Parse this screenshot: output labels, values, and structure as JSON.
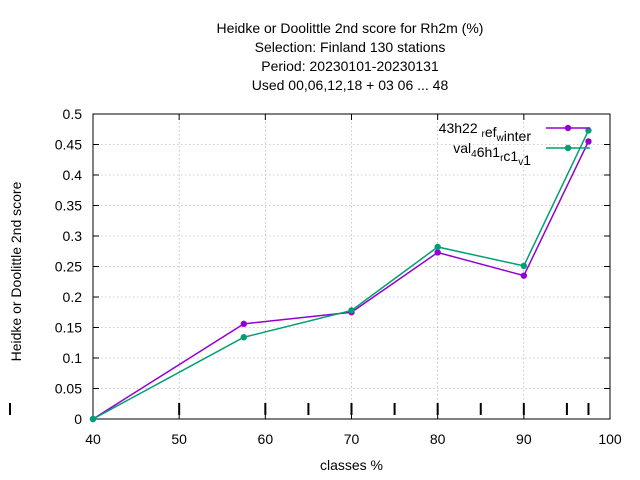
{
  "chart_data": {
    "type": "line",
    "title_lines": [
      "Heidke or Doolittle 2nd score  for Rh2m (%)",
      "Selection: Finland    130 stations",
      "Period: 20230101-20230131",
      "Used  00,06,12,18  + 03 06 ... 48"
    ],
    "xlabel": "classes %",
    "ylabel": "Heidke or Doolittle 2nd score",
    "xlim": [
      40,
      100
    ],
    "ylim": [
      0,
      0.5
    ],
    "xticks": [
      40,
      50,
      60,
      70,
      80,
      90,
      100
    ],
    "yticks": [
      0,
      0.05,
      0.1,
      0.15,
      0.2,
      0.25,
      0.3,
      0.35,
      0.4,
      0.45,
      0.5
    ],
    "ytick_labels": [
      "0",
      "0.05",
      "0.1",
      "0.15",
      "0.2",
      "0.25",
      "0.3",
      "0.35",
      "0.4",
      "0.45",
      "0.5"
    ],
    "xtick_labels": [
      "40",
      "50",
      "60",
      "70",
      "80",
      "90",
      "100"
    ],
    "class_marks_x": [
      40,
      50,
      60,
      65,
      70,
      75,
      80,
      85,
      90,
      95,
      97.5
    ],
    "grid": true,
    "legend_position": "top-right",
    "series": [
      {
        "name": "43h22 r ef w inter",
        "legend_parts": [
          [
            "43h22 ",
            ""
          ],
          [
            "r",
            "sub"
          ],
          [
            "ef",
            ""
          ],
          [
            "w",
            "sub"
          ],
          [
            "inter",
            ""
          ]
        ],
        "color": "#9400d3",
        "x": [
          40,
          57.5,
          70,
          80,
          90,
          97.5
        ],
        "y": [
          0.0,
          0.156,
          0.175,
          0.273,
          0.235,
          0.455
        ]
      },
      {
        "name": "val 4 6h1 r c1 v 1",
        "legend_parts": [
          [
            "val",
            ""
          ],
          [
            "4",
            "sub"
          ],
          [
            "6h1",
            ""
          ],
          [
            "r",
            "sub"
          ],
          [
            "c1",
            ""
          ],
          [
            "v",
            "sub"
          ],
          [
            "1",
            ""
          ]
        ],
        "color": "#009e73",
        "x": [
          40,
          57.5,
          70,
          80,
          90,
          97.5
        ],
        "y": [
          0.0,
          0.134,
          0.178,
          0.282,
          0.251,
          0.473
        ]
      }
    ]
  }
}
